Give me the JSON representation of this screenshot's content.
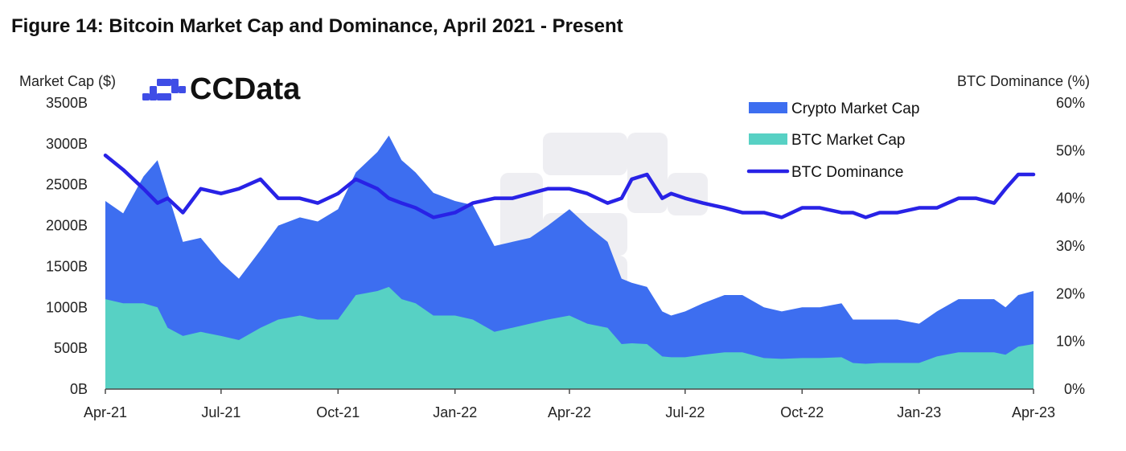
{
  "page": {
    "title": "Figure 14: Bitcoin Market Cap and Dominance, April 2021 - Present",
    "brand": "CCData"
  },
  "colors": {
    "crypto_market_cap": "#3D6EF0",
    "btc_market_cap": "#57D1C4",
    "btc_dominance": "#2822E6",
    "axis": "#4A4A4A",
    "text": "#222222",
    "watermark": "#EEEEF2"
  },
  "chart_data": {
    "type": "area",
    "title": "Figure 14: Bitcoin Market Cap and Dominance, April 2021 - Present",
    "ylabel": "Market Cap ($)",
    "y2label": "BTC Dominance (%)",
    "ylim": [
      0,
      3500
    ],
    "y2lim": [
      0,
      60
    ],
    "y_ticks": [
      "0B",
      "500B",
      "1000B",
      "1500B",
      "2000B",
      "2500B",
      "3000B",
      "3500B"
    ],
    "y2_ticks": [
      "0%",
      "10%",
      "20%",
      "30%",
      "40%",
      "50%",
      "60%"
    ],
    "x_tick_labels": [
      "Apr-21",
      "Jul-21",
      "Oct-21",
      "Jan-22",
      "Apr-22",
      "Jul-22",
      "Oct-22",
      "Jan-23",
      "Apr-23"
    ],
    "legend_position": "top-right",
    "grid": false,
    "x": [
      "2021-04-01",
      "2021-04-15",
      "2021-05-01",
      "2021-05-12",
      "2021-05-20",
      "2021-06-01",
      "2021-06-15",
      "2021-07-01",
      "2021-07-15",
      "2021-08-01",
      "2021-08-15",
      "2021-09-01",
      "2021-09-15",
      "2021-10-01",
      "2021-10-15",
      "2021-11-01",
      "2021-11-10",
      "2021-11-20",
      "2021-12-01",
      "2021-12-15",
      "2022-01-01",
      "2022-01-15",
      "2022-02-01",
      "2022-02-15",
      "2022-03-01",
      "2022-03-15",
      "2022-04-01",
      "2022-04-15",
      "2022-05-01",
      "2022-05-12",
      "2022-05-20",
      "2022-06-01",
      "2022-06-13",
      "2022-06-20",
      "2022-07-01",
      "2022-07-15",
      "2022-08-01",
      "2022-08-15",
      "2022-09-01",
      "2022-09-15",
      "2022-10-01",
      "2022-10-15",
      "2022-11-01",
      "2022-11-10",
      "2022-11-20",
      "2022-12-01",
      "2022-12-15",
      "2023-01-01",
      "2023-01-15",
      "2023-02-01",
      "2023-02-15",
      "2023-03-01",
      "2023-03-10",
      "2023-03-20",
      "2023-04-01"
    ],
    "series": [
      {
        "name": "Crypto Market Cap",
        "values": [
          2300,
          2150,
          2600,
          2800,
          2400,
          1800,
          1850,
          1550,
          1350,
          1700,
          2000,
          2100,
          2050,
          2200,
          2650,
          2900,
          3100,
          2800,
          2650,
          2400,
          2300,
          2250,
          1750,
          1800,
          1850,
          2000,
          2200,
          2000,
          1800,
          1350,
          1300,
          1250,
          950,
          900,
          950,
          1050,
          1150,
          1150,
          1000,
          950,
          1000,
          1000,
          1050,
          850,
          850,
          850,
          850,
          800,
          950,
          1100,
          1100,
          1100,
          1000,
          1150,
          1200
        ]
      },
      {
        "name": "BTC Market Cap",
        "values": [
          1100,
          1050,
          1050,
          1000,
          750,
          650,
          700,
          650,
          600,
          750,
          850,
          900,
          850,
          850,
          1150,
          1200,
          1250,
          1100,
          1050,
          900,
          900,
          850,
          700,
          750,
          800,
          850,
          900,
          800,
          750,
          550,
          560,
          550,
          400,
          390,
          390,
          420,
          450,
          450,
          380,
          370,
          380,
          380,
          390,
          320,
          310,
          320,
          320,
          320,
          400,
          450,
          450,
          450,
          420,
          520,
          550
        ]
      },
      {
        "name": "BTC Dominance",
        "values": [
          49,
          46,
          42,
          39,
          40,
          37,
          42,
          41,
          42,
          44,
          40,
          40,
          39,
          41,
          44,
          42,
          40,
          39,
          38,
          36,
          37,
          39,
          40,
          40,
          41,
          42,
          42,
          41,
          39,
          40,
          44,
          45,
          40,
          41,
          40,
          39,
          38,
          37,
          37,
          36,
          38,
          38,
          37,
          37,
          36,
          37,
          37,
          38,
          38,
          40,
          40,
          39,
          42,
          45,
          45
        ]
      }
    ]
  }
}
